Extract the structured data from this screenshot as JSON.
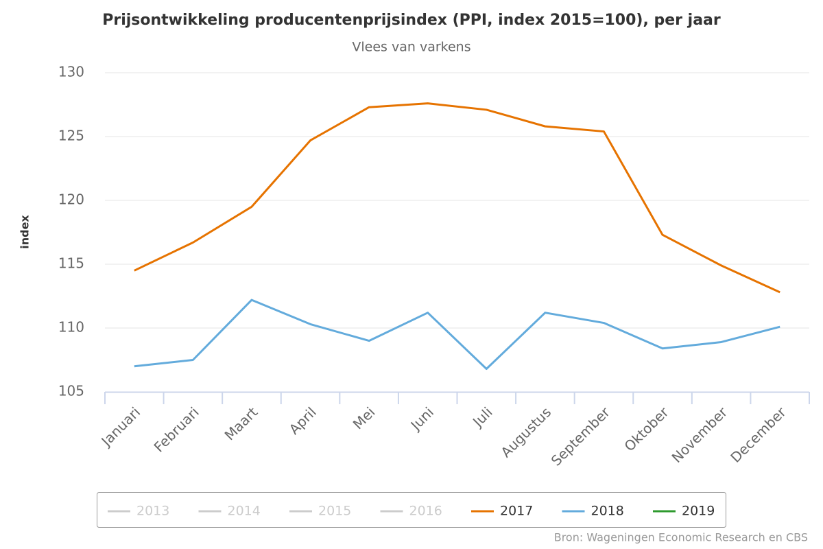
{
  "chart_data": {
    "type": "line",
    "title": "Prijsontwikkeling producentenprijsindex (PPI, index 2015=100), per jaar",
    "subtitle": "Vlees van varkens",
    "y_label": "index",
    "categories": [
      "Januari",
      "Februari",
      "Maart",
      "April",
      "Mei",
      "Juni",
      "Juli",
      "Augustus",
      "September",
      "Oktober",
      "November",
      "December"
    ],
    "ylim": [
      105,
      130
    ],
    "yticks": [
      105,
      110,
      115,
      120,
      125,
      130
    ],
    "grid": true,
    "legend": "bottom",
    "series": [
      {
        "name": "2013",
        "color": "#cccccc",
        "visible": false,
        "values": [
          null,
          null,
          null,
          null,
          null,
          null,
          null,
          null,
          null,
          null,
          null,
          null
        ]
      },
      {
        "name": "2014",
        "color": "#cccccc",
        "visible": false,
        "values": [
          null,
          null,
          null,
          null,
          null,
          null,
          null,
          null,
          null,
          null,
          null,
          null
        ]
      },
      {
        "name": "2015",
        "color": "#cccccc",
        "visible": false,
        "values": [
          null,
          null,
          null,
          null,
          null,
          null,
          null,
          null,
          null,
          null,
          null,
          null
        ]
      },
      {
        "name": "2016",
        "color": "#cccccc",
        "visible": false,
        "values": [
          null,
          null,
          null,
          null,
          null,
          null,
          null,
          null,
          null,
          null,
          null,
          null
        ]
      },
      {
        "name": "2017",
        "color": "#e67300",
        "visible": true,
        "values": [
          114.5,
          116.7,
          119.5,
          124.7,
          127.3,
          127.6,
          127.1,
          125.8,
          125.4,
          117.3,
          114.9,
          112.8
        ]
      },
      {
        "name": "2018",
        "color": "#63abdc",
        "visible": true,
        "values": [
          107.0,
          107.5,
          112.2,
          110.3,
          109.0,
          111.2,
          106.8,
          111.2,
          110.4,
          108.4,
          108.9,
          110.1
        ]
      },
      {
        "name": "2019",
        "color": "#2e9a2e",
        "visible": true,
        "values": [
          null,
          null,
          null,
          null,
          null,
          null,
          null,
          null,
          null,
          null,
          null,
          null
        ]
      }
    ],
    "credits": "Bron: Wageningen Economic Research en CBS"
  }
}
